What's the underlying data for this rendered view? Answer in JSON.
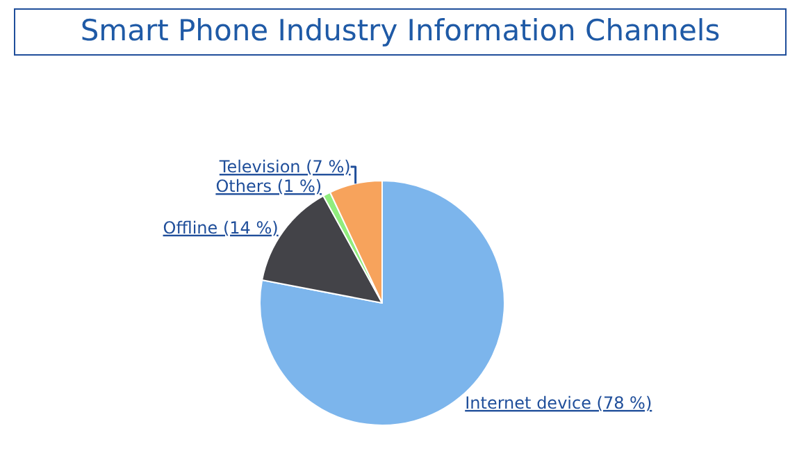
{
  "chart_data": {
    "type": "pie",
    "title": "Smart Phone Industry Information Channels",
    "categories": [
      "Internet device",
      "Offline",
      "Others",
      "Television"
    ],
    "values": [
      78,
      14,
      1,
      7
    ],
    "value_labels": [
      "(78 %)",
      "(14 %)",
      "(1 %)",
      "(7 %)"
    ],
    "colors": [
      "#7cb5ec",
      "#434348",
      "#90ed7d",
      "#f7a35c"
    ],
    "legend": false
  }
}
